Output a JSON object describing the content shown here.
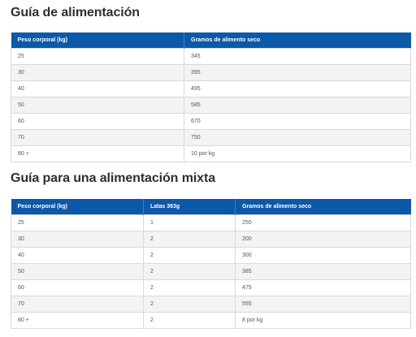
{
  "guide1": {
    "title": "Guía de alimentación",
    "headers": [
      "Peso corporal (kg)",
      "Gramos de alimento seco"
    ],
    "rows": [
      [
        "25",
        "345"
      ],
      [
        "30",
        "395"
      ],
      [
        "40",
        "495"
      ],
      [
        "50",
        "585"
      ],
      [
        "60",
        "670"
      ],
      [
        "70",
        "750"
      ],
      [
        "80 +",
        "10 por kg"
      ]
    ]
  },
  "guide2": {
    "title": "Guía para una alimentación mixta",
    "headers": [
      "Peso corporal (kg)",
      "Latas 363g",
      "Gramos de alimento seco"
    ],
    "rows": [
      [
        "25",
        "1",
        "250"
      ],
      [
        "30",
        "2",
        "200"
      ],
      [
        "40",
        "2",
        "300"
      ],
      [
        "50",
        "2",
        "385"
      ],
      [
        "60",
        "2",
        "475"
      ],
      [
        "70",
        "2",
        "555"
      ],
      [
        "80 +",
        "2",
        "8 por kg"
      ]
    ]
  }
}
